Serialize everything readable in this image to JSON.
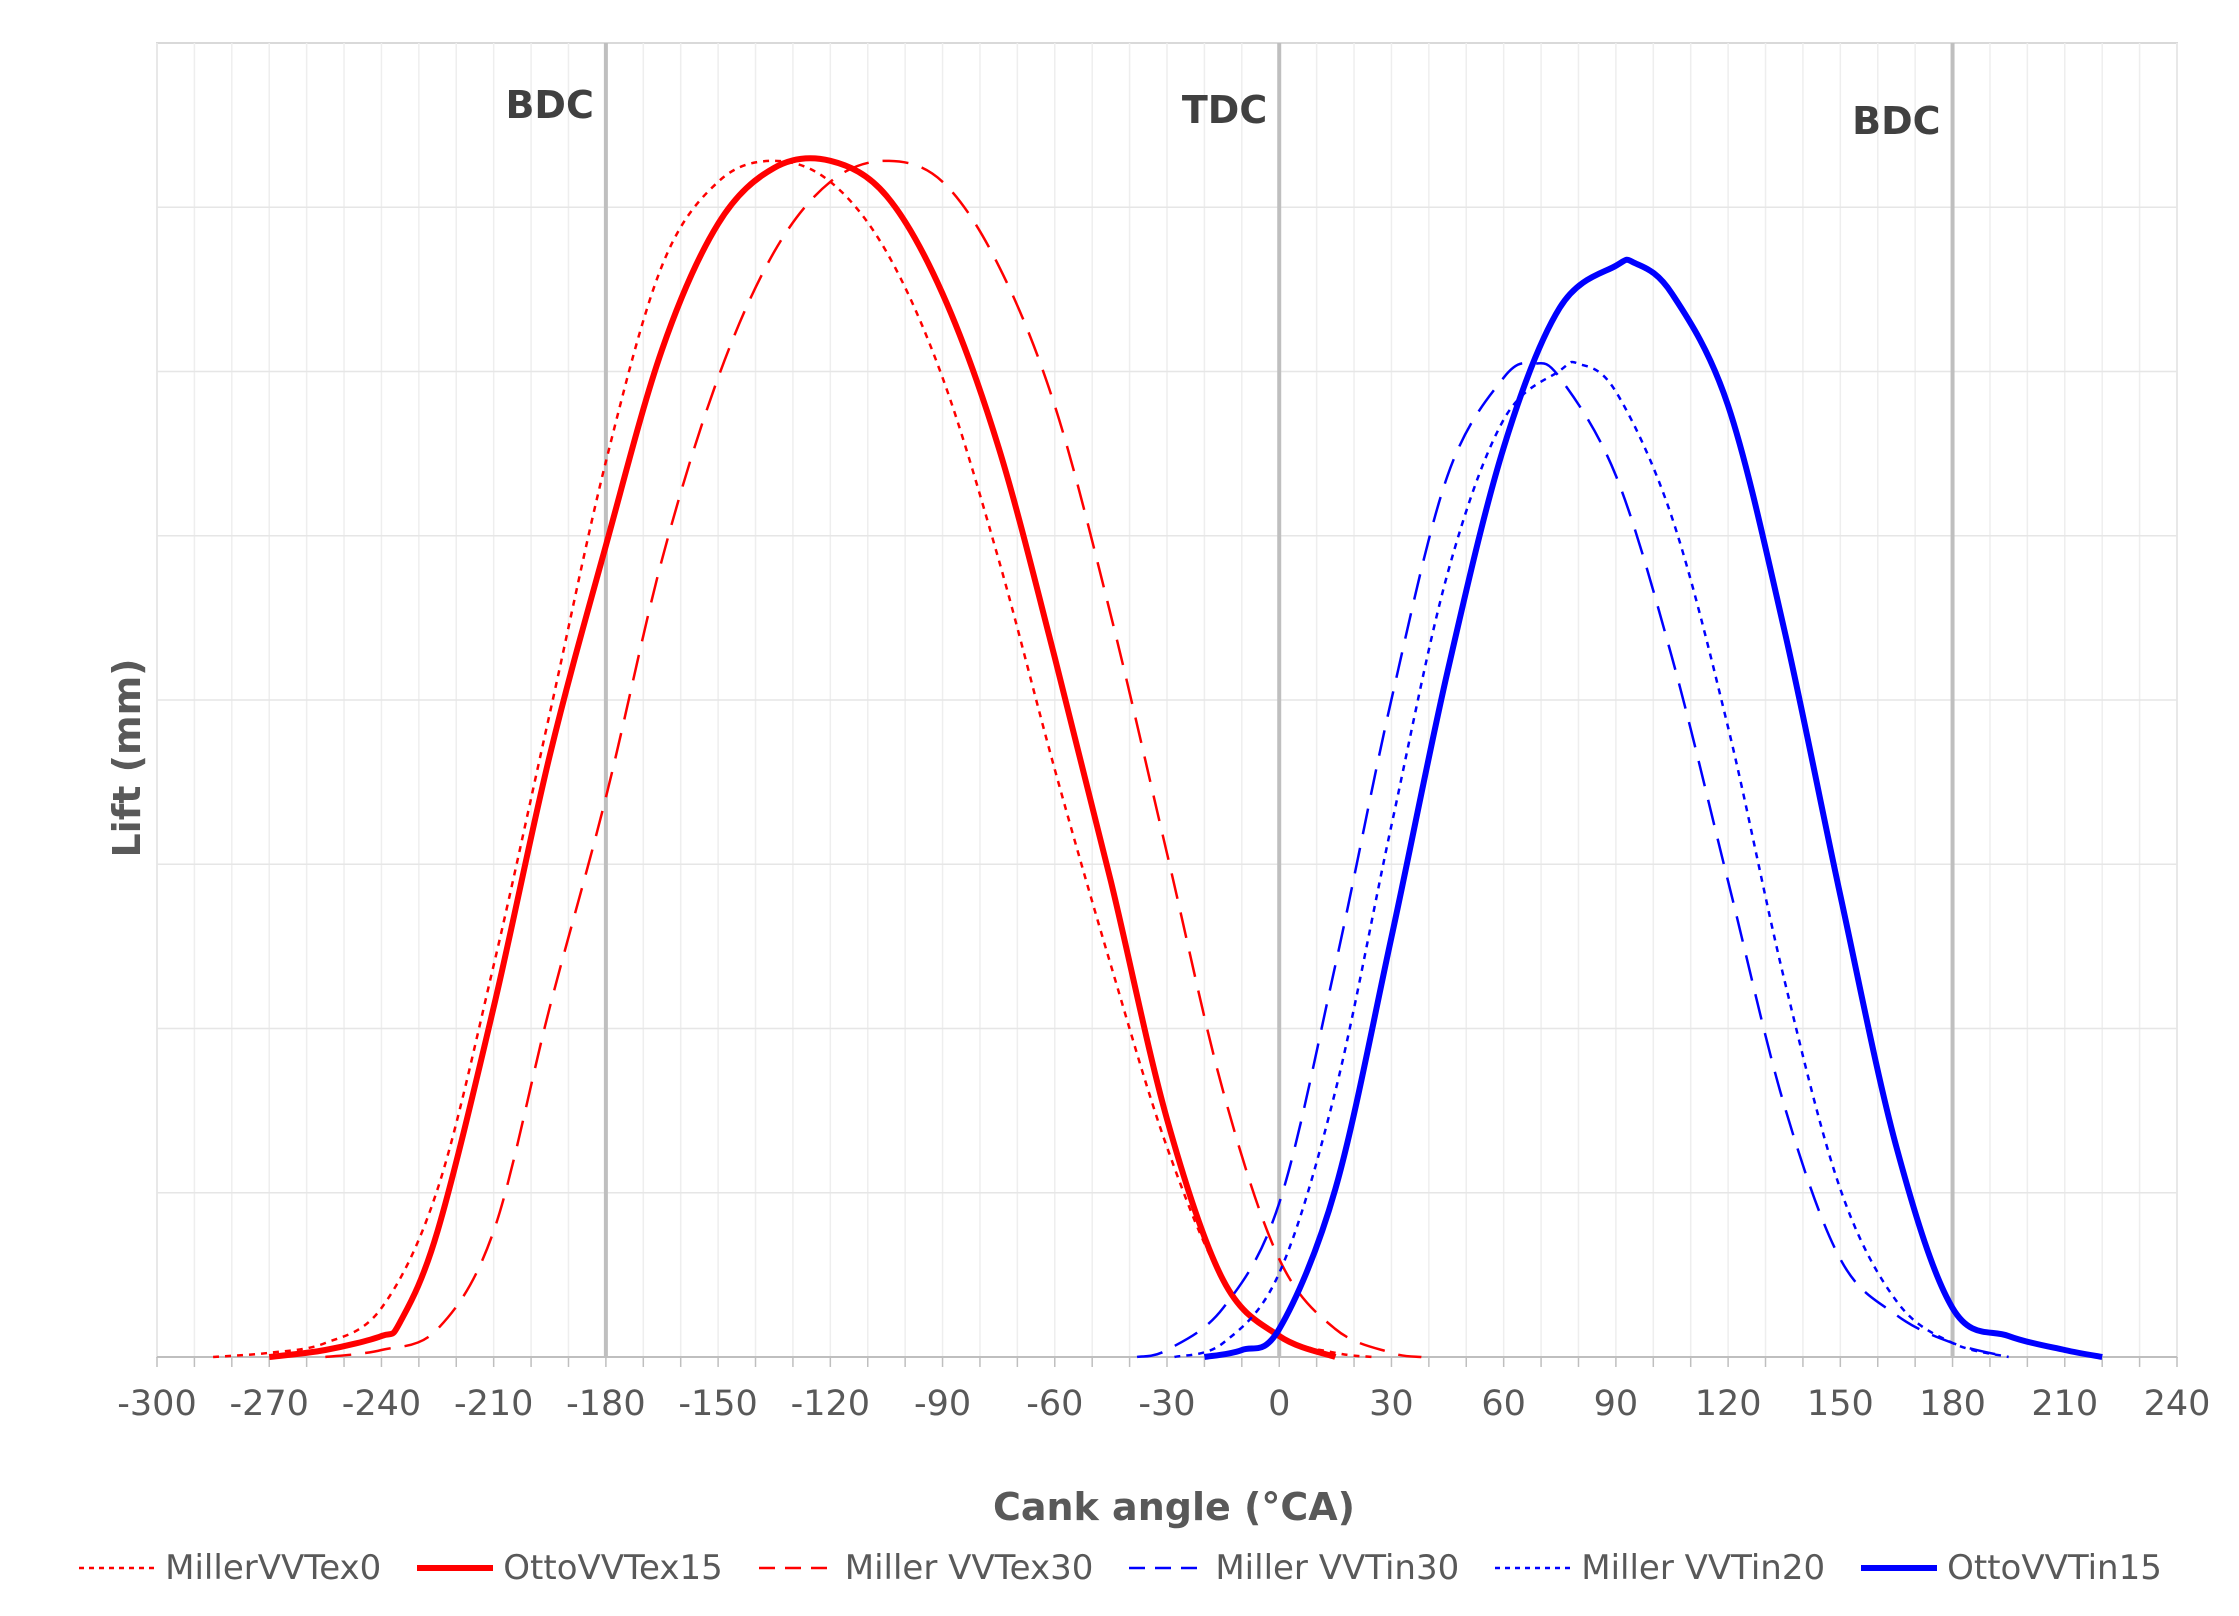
{
  "chart_data": {
    "type": "line",
    "xlabel": "Cank angle (°CA)",
    "ylabel": "Lift (mm)",
    "xlim": [
      -300,
      240
    ],
    "ylim": [
      0,
      8.5
    ],
    "x_ticks": [
      -300,
      -270,
      -240,
      -210,
      -180,
      -150,
      -120,
      -90,
      -60,
      -30,
      0,
      30,
      60,
      90,
      120,
      150,
      180,
      210,
      240
    ],
    "y_grid_count": 8,
    "y_tick_labels_visible": false,
    "grid": true,
    "legend_position": "bottom",
    "reference_lines": [
      {
        "x": -180,
        "label": "BDC"
      },
      {
        "x": 0,
        "label": "TDC"
      },
      {
        "x": 180,
        "label": "BDC"
      }
    ],
    "series": [
      {
        "name": "MillerVVTex0",
        "color": "#ff0000",
        "style": "dotted",
        "x": [
          -285,
          -270,
          -255,
          -240,
          -225,
          -210,
          -195,
          -180,
          -165,
          -150,
          -135,
          -120,
          -105,
          -90,
          -75,
          -60,
          -45,
          -30,
          -15,
          0,
          15,
          25
        ],
        "y": [
          0.0,
          0.03,
          0.1,
          0.35,
          1.2,
          2.8,
          4.6,
          6.4,
          7.8,
          8.4,
          8.55,
          8.4,
          7.9,
          7.0,
          5.7,
          4.2,
          2.8,
          1.5,
          0.55,
          0.15,
          0.03,
          0.0
        ]
      },
      {
        "name": "OttoVVTex15",
        "color": "#ff0000",
        "style": "solid",
        "x": [
          -270,
          -255,
          -240,
          -235,
          -225,
          -210,
          -195,
          -180,
          -165,
          -150,
          -135,
          -120,
          -105,
          -90,
          -75,
          -60,
          -45,
          -30,
          -15,
          0,
          15
        ],
        "y": [
          0.0,
          0.05,
          0.15,
          0.25,
          0.9,
          2.5,
          4.3,
          5.8,
          7.2,
          8.1,
          8.5,
          8.55,
          8.3,
          7.6,
          6.5,
          5.0,
          3.4,
          1.7,
          0.55,
          0.15,
          0.0
        ]
      },
      {
        "name": "Miller VVTex30",
        "color": "#ff0000",
        "style": "dashed",
        "x": [
          -255,
          -240,
          -225,
          -210,
          -195,
          -180,
          -165,
          -150,
          -135,
          -120,
          -105,
          -90,
          -75,
          -60,
          -45,
          -30,
          -15,
          0,
          15,
          30,
          38
        ],
        "y": [
          0.0,
          0.05,
          0.2,
          0.9,
          2.5,
          4.0,
          5.7,
          7.0,
          7.9,
          8.4,
          8.55,
          8.4,
          7.8,
          6.8,
          5.3,
          3.6,
          1.9,
          0.7,
          0.2,
          0.03,
          0.0
        ]
      },
      {
        "name": "Miller VVTin30",
        "color": "#0000ff",
        "style": "dashed",
        "x": [
          -38,
          -30,
          -15,
          0,
          15,
          30,
          45,
          60,
          68,
          75,
          90,
          105,
          120,
          135,
          150,
          165,
          180,
          195
        ],
        "y": [
          0.0,
          0.05,
          0.35,
          1.1,
          2.8,
          4.7,
          6.3,
          7.0,
          7.1,
          7.0,
          6.3,
          5.0,
          3.4,
          1.8,
          0.7,
          0.3,
          0.1,
          0.0
        ]
      },
      {
        "name": "Miller VVTin20",
        "color": "#0000ff",
        "style": "dotted",
        "x": [
          -28,
          -15,
          0,
          15,
          30,
          45,
          60,
          75,
          80,
          90,
          105,
          120,
          135,
          150,
          165,
          180,
          195
        ],
        "y": [
          0.0,
          0.1,
          0.6,
          1.9,
          3.8,
          5.6,
          6.7,
          7.05,
          7.1,
          6.9,
          6.0,
          4.5,
          2.7,
          1.2,
          0.4,
          0.1,
          0.0
        ]
      },
      {
        "name": "OttoVVTin15",
        "color": "#0000ff",
        "style": "solid",
        "x": [
          -20,
          -10,
          0,
          15,
          30,
          45,
          60,
          75,
          90,
          95,
          105,
          120,
          135,
          150,
          165,
          180,
          195,
          210,
          220
        ],
        "y": [
          0.0,
          0.05,
          0.2,
          1.2,
          3.0,
          4.9,
          6.5,
          7.5,
          7.8,
          7.82,
          7.6,
          6.8,
          5.2,
          3.3,
          1.5,
          0.35,
          0.15,
          0.05,
          0.0
        ]
      }
    ]
  }
}
